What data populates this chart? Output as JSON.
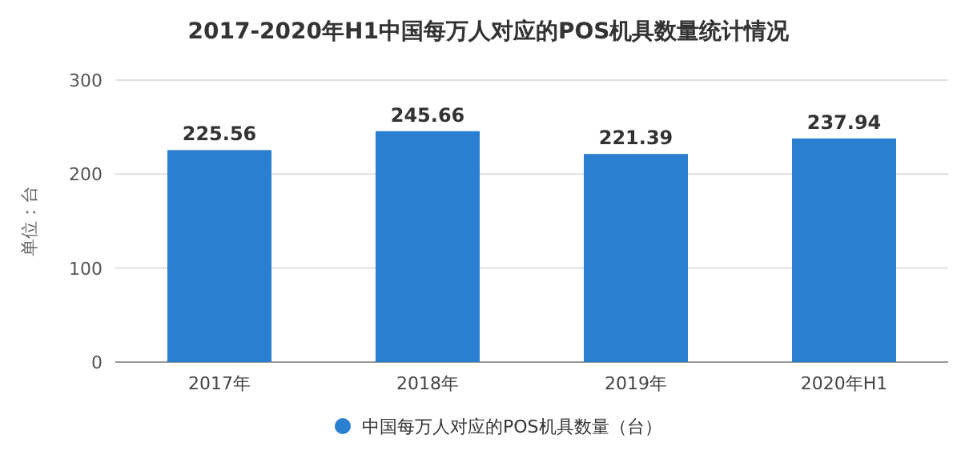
{
  "chart_data": {
    "type": "bar",
    "title": "2017-2020年H1中国每万人对应的POS机具数量统计情况",
    "ylabel": "单位：台",
    "categories": [
      "2017年",
      "2018年",
      "2019年",
      "2020年H1"
    ],
    "series": [
      {
        "name": "中国每万人对应的POS机具数量（台）",
        "color": "#2a7fd0",
        "values": [
          225.56,
          245.66,
          221.39,
          237.94
        ]
      }
    ],
    "ylim": [
      0,
      300
    ],
    "yticks": [
      0,
      100,
      200,
      300
    ],
    "grid": "y",
    "legend": "bottom",
    "data_labels": true
  }
}
